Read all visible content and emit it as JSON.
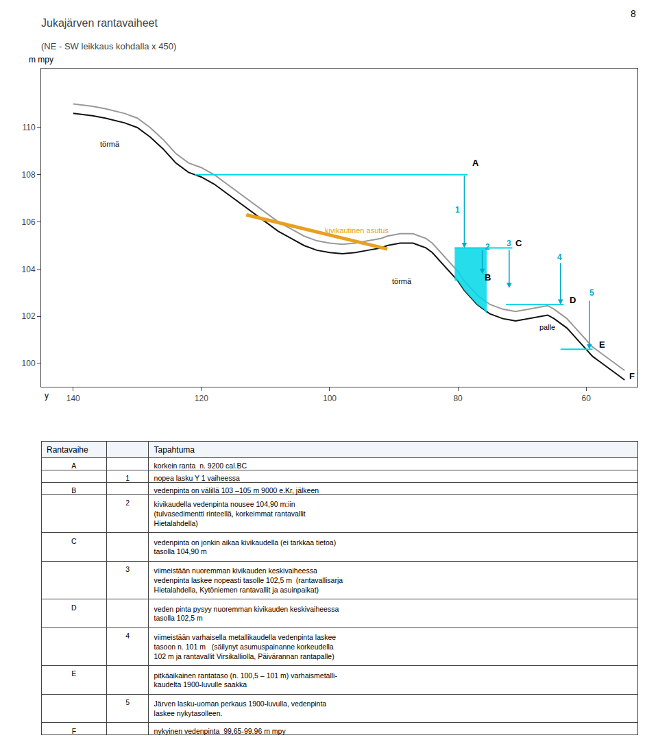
{
  "chart_data": {
    "type": "line",
    "title": "Jukajärven rantavaiheet",
    "subtitle": "(NE - SW leikkaus kohdalla x 450)",
    "ylabel": "m mpy",
    "xlabel": "y",
    "page_number": "8",
    "xlim": [
      145,
      52
    ],
    "ylim": [
      99.0,
      112.5
    ],
    "xticks": [
      140,
      120,
      100,
      80,
      60
    ],
    "yticks": [
      100,
      102,
      104,
      106,
      108,
      110
    ],
    "grid": false,
    "series": [
      {
        "type": "line",
        "color": "#999999",
        "x": [
          140,
          137,
          135,
          132,
          130,
          128,
          126,
          124,
          122,
          120,
          118,
          116,
          114,
          112,
          110,
          108,
          106,
          104,
          102,
          100,
          98,
          96,
          94,
          92,
          91,
          90,
          89,
          88,
          87,
          86,
          85,
          84,
          83,
          82,
          81,
          80,
          79,
          78,
          77,
          76,
          75,
          74,
          73,
          72,
          71,
          70,
          69,
          68,
          67,
          66,
          65,
          64,
          63,
          62,
          61,
          60,
          59,
          58,
          57,
          56,
          55,
          54
        ],
        "values": [
          111.0,
          110.9,
          110.8,
          110.6,
          110.4,
          110.0,
          109.5,
          108.9,
          108.5,
          108.3,
          108.0,
          107.6,
          107.2,
          106.8,
          106.4,
          106.0,
          105.7,
          105.4,
          105.2,
          105.1,
          105.05,
          105.1,
          105.2,
          105.3,
          105.4,
          105.45,
          105.5,
          105.5,
          105.5,
          105.4,
          105.3,
          105.1,
          104.8,
          104.5,
          104.2,
          103.9,
          103.5,
          103.2,
          102.9,
          102.7,
          102.5,
          102.4,
          102.3,
          102.25,
          102.2,
          102.25,
          102.3,
          102.35,
          102.4,
          102.45,
          102.3,
          102.1,
          101.9,
          101.6,
          101.3,
          101.0,
          100.7,
          100.5,
          100.3,
          100.1,
          99.9,
          99.7
        ]
      },
      {
        "type": "line",
        "color": "#111111",
        "x": [
          140,
          137,
          135,
          132,
          130,
          128,
          126,
          124,
          122,
          120,
          118,
          116,
          114,
          112,
          110,
          108,
          106,
          104,
          102,
          100,
          98,
          96,
          94,
          92,
          91,
          90,
          89,
          88,
          87,
          86,
          85,
          84,
          83,
          82,
          81,
          80,
          79,
          78,
          77,
          76,
          75,
          74,
          73,
          72,
          71,
          70,
          69,
          68,
          67,
          66,
          65,
          64,
          63,
          62,
          61,
          60,
          59,
          58,
          57,
          56,
          55,
          54
        ],
        "values": [
          110.6,
          110.5,
          110.4,
          110.2,
          110.0,
          109.6,
          109.1,
          108.5,
          108.1,
          107.9,
          107.6,
          107.2,
          106.8,
          106.4,
          106.0,
          105.6,
          105.3,
          105.0,
          104.8,
          104.7,
          104.65,
          104.7,
          104.8,
          104.9,
          105.0,
          105.05,
          105.1,
          105.1,
          105.1,
          105.0,
          104.9,
          104.7,
          104.4,
          104.1,
          103.8,
          103.5,
          103.1,
          102.8,
          102.5,
          102.3,
          102.1,
          102.0,
          101.9,
          101.85,
          101.8,
          101.85,
          101.9,
          101.95,
          102.0,
          102.05,
          101.9,
          101.7,
          101.5,
          101.2,
          100.9,
          100.6,
          100.3,
          100.1,
          99.9,
          99.7,
          99.5,
          99.3
        ]
      },
      {
        "type": "line",
        "color": "#E8A020",
        "line_style": "thick",
        "x": [
          113,
          91
        ],
        "values": [
          106.3,
          104.85
        ]
      },
      {
        "type": "line",
        "color": "#00D8E8",
        "x": [
          121,
          78.5
        ],
        "values": [
          108.0,
          108.0
        ]
      },
      {
        "type": "area",
        "color": "#00D8E8",
        "x": [
          80.5,
          80,
          79,
          78,
          77,
          76,
          75.5
        ],
        "values": [
          103.5,
          103.5,
          103.1,
          102.8,
          102.5,
          102.3,
          102.1
        ],
        "top": 104.9
      },
      {
        "type": "line",
        "color": "#00D8E8",
        "x": [
          80.5,
          71.5
        ],
        "values": [
          104.9,
          104.9
        ]
      },
      {
        "type": "line",
        "color": "#00D8E8",
        "x": [
          72.5,
          63.5
        ],
        "values": [
          102.5,
          102.5
        ]
      },
      {
        "type": "line",
        "color": "#00D8E8",
        "x": [
          64.0,
          59.0
        ],
        "values": [
          100.6,
          100.6
        ]
      }
    ],
    "arrow_color": "#00AACC",
    "arrows": [
      {
        "x": 79.0,
        "y": 104.9,
        "x_from": 79.0,
        "y_from": 108.0
      },
      {
        "x": 76.2,
        "y": 103.8,
        "x_from": 76.2,
        "y_from": 104.85
      },
      {
        "x": 72.0,
        "y": 103.2,
        "x_from": 72.0,
        "y_from": 104.85
      },
      {
        "x": 64.0,
        "y": 102.5,
        "x_from": 64.0,
        "y_from": 104.3
      },
      {
        "x": 59.5,
        "y": 100.6,
        "x_from": 59.5,
        "y_from": 102.7
      }
    ],
    "labels": [
      {
        "text": "törmä",
        "x": 136.0,
        "y": 109.3
      },
      {
        "text": "törmä",
        "x": 90.5,
        "y": 103.5
      },
      {
        "text": "kivikautinen asutus",
        "x": 101.0,
        "y": 105.65,
        "color": "#E8A020"
      },
      {
        "text": "palle",
        "x": 67.5,
        "y": 101.55
      }
    ],
    "letter_labels": [
      {
        "text": "A",
        "x": 78.0,
        "y": 108.5
      },
      {
        "text": "B",
        "x": 76.0,
        "y": 103.65
      },
      {
        "text": "C",
        "x": 71.2,
        "y": 105.1
      },
      {
        "text": "D",
        "x": 62.8,
        "y": 102.7
      },
      {
        "text": "E",
        "x": 58.2,
        "y": 100.8
      },
      {
        "text": "F",
        "x": 53.5,
        "y": 99.45
      }
    ],
    "step_labels": [
      {
        "text": "1",
        "x": 79.5,
        "y": 106.5
      },
      {
        "text": "2",
        "x": 74.8,
        "y": 104.95
      },
      {
        "text": "3",
        "x": 71.5,
        "y": 105.1
      },
      {
        "text": "4",
        "x": 63.5,
        "y": 104.5
      },
      {
        "text": "5",
        "x": 58.5,
        "y": 103.0
      }
    ],
    "table": {
      "header": [
        "Rantavaihe",
        "Tapahtuma"
      ],
      "rows": [
        {
          "phase": "A",
          "step": null,
          "event": [
            "korkein ranta  n. 9200 cal.BC"
          ]
        },
        {
          "phase": null,
          "step": "1",
          "event": [
            "nopea lasku Y 1 vaiheessa"
          ]
        },
        {
          "phase": "B",
          "step": null,
          "event": [
            "vedenpinta on välillä 103 –105 m 9000 e.Kr, jälkeen"
          ]
        },
        {
          "phase": null,
          "step": "2",
          "event": [
            "kivikaudella vedenpinta nousee 104,90 m:iin",
            "(tulvasedimentti rinteellä, korkeimmat rantavallit",
            "Hietalahdella)"
          ]
        },
        {
          "phase": "C",
          "step": null,
          "event": [
            "vedenpinta on jonkin aikaa kivikaudella (ei tarkkaa tietoa)",
            "tasolla 104,90 m"
          ]
        },
        {
          "phase": null,
          "step": "3",
          "event": [
            "viimeistään nuoremman kivikauden keskivaiheessa",
            "vedenpinta laskee nopeasti tasolle 102,5 m  (rantavallisarja",
            "Hietalahdella, Kytöniemen rantavallit ja asuinpaikat)"
          ]
        },
        {
          "phase": "D",
          "step": null,
          "event": [
            "veden pinta pysyy nuoremman kivikauden keskivaiheessa",
            "tasolla 102,5 m"
          ]
        },
        {
          "phase": null,
          "step": "4",
          "event": [
            "viimeistään varhaisella metallikaudella vedenpinta laskee",
            "tasoon n. 101 m   (säilynyt asumuspainanne korkeudella",
            "102 m ja rantavallit Virsikalliolla, Päivärannan rantapalle)"
          ]
        },
        {
          "phase": "E",
          "step": null,
          "event": [
            "pitkäaikainen rantataso (n. 100,5 – 101 m) varhaismetalli-",
            "kaudelta 1900-luvulle saakka"
          ]
        },
        {
          "phase": null,
          "step": "5",
          "event": [
            "Järven lasku-uoman perkaus 1900-luvulla, vedenpinta",
            "laskee nykytasolleen."
          ]
        },
        {
          "phase": "F",
          "step": null,
          "event": [
            "nykyinen vedenpinta  99,65-99.96 m mpy"
          ]
        }
      ]
    }
  }
}
